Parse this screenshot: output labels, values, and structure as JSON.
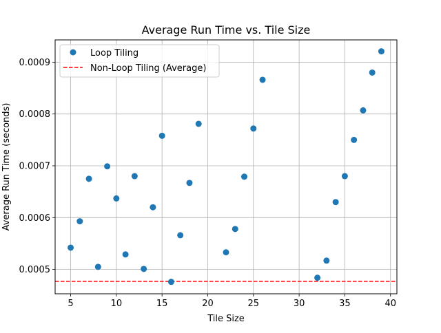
{
  "chart_data": {
    "type": "scatter",
    "title": "Average Run Time vs. Tile Size",
    "xlabel": "Tile Size",
    "ylabel": "Average Run Time (seconds)",
    "xlim": [
      3.3,
      40.7
    ],
    "ylim": [
      0.000453,
      0.000943
    ],
    "xticks": [
      5,
      10,
      15,
      20,
      25,
      30,
      35,
      40
    ],
    "yticks": [
      0.0005,
      0.0006,
      0.0007,
      0.0008,
      0.0009
    ],
    "xtick_labels": [
      "5",
      "10",
      "15",
      "20",
      "25",
      "30",
      "35",
      "40"
    ],
    "ytick_labels": [
      "0.0005",
      "0.0006",
      "0.0007",
      "0.0008",
      "0.0009"
    ],
    "grid": true,
    "legend_position": "top-left",
    "series": [
      {
        "name": "Loop Tiling",
        "kind": "scatter",
        "color": "#1f77b4",
        "points": [
          [
            5,
            0.000542
          ],
          [
            6,
            0.000593
          ],
          [
            7,
            0.000675
          ],
          [
            8,
            0.000505
          ],
          [
            9,
            0.000699
          ],
          [
            10,
            0.000637
          ],
          [
            11,
            0.000529
          ],
          [
            12,
            0.00068
          ],
          [
            13,
            0.000501
          ],
          [
            14,
            0.00062
          ],
          [
            15,
            0.000758
          ],
          [
            16,
            0.000476
          ],
          [
            17,
            0.000566
          ],
          [
            18,
            0.000667
          ],
          [
            19,
            0.000781
          ],
          [
            22,
            0.000533
          ],
          [
            23,
            0.000578
          ],
          [
            24,
            0.000679
          ],
          [
            25,
            0.000772
          ],
          [
            26,
            0.000866
          ],
          [
            32,
            0.000484
          ],
          [
            33,
            0.000517
          ],
          [
            34,
            0.00063
          ],
          [
            35,
            0.00068
          ],
          [
            36,
            0.00075
          ],
          [
            37,
            0.000807
          ],
          [
            38,
            0.00088
          ],
          [
            39,
            0.000921
          ]
        ]
      },
      {
        "name": "Non-Loop Tiling (Average)",
        "kind": "hline",
        "color": "#ff0000",
        "value": 0.000477
      }
    ]
  }
}
